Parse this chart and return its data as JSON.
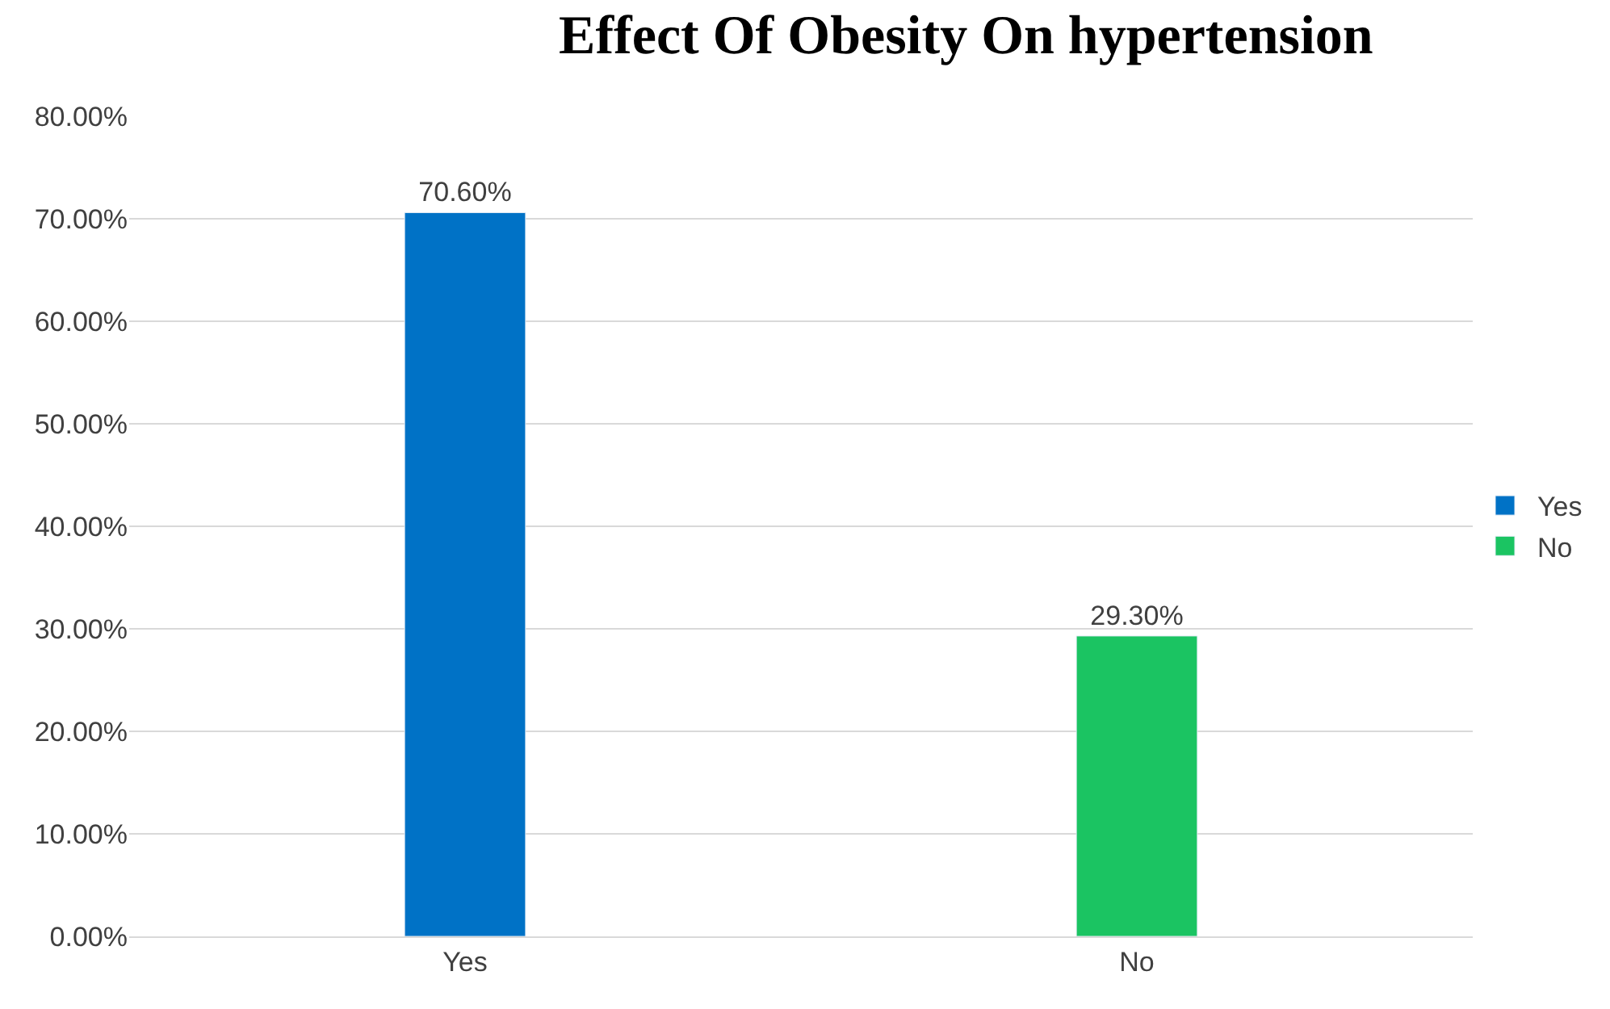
{
  "chart_data": {
    "type": "bar",
    "title": "Effect Of Obesity On hypertension",
    "categories": [
      "Yes",
      "No"
    ],
    "series": [
      {
        "name": "Yes",
        "color": "#0072c6",
        "values": [
          70.6,
          null
        ],
        "value_labels": [
          "70.60%",
          null
        ]
      },
      {
        "name": "No",
        "color": "#1bc462",
        "values": [
          null,
          29.3
        ],
        "value_labels": [
          null,
          "29.30%"
        ]
      }
    ],
    "ylim": [
      0,
      80
    ],
    "yticks": [
      {
        "value": 0,
        "label": "0.00%"
      },
      {
        "value": 10,
        "label": "10.00%"
      },
      {
        "value": 20,
        "label": "20.00%"
      },
      {
        "value": 30,
        "label": "30.00%"
      },
      {
        "value": 40,
        "label": "40.00%"
      },
      {
        "value": 50,
        "label": "50.00%"
      },
      {
        "value": 60,
        "label": "60.00%"
      },
      {
        "value": 70,
        "label": "70.00%"
      },
      {
        "value": 80,
        "label": "80.00%"
      }
    ],
    "grid": "y",
    "legend": "right"
  }
}
